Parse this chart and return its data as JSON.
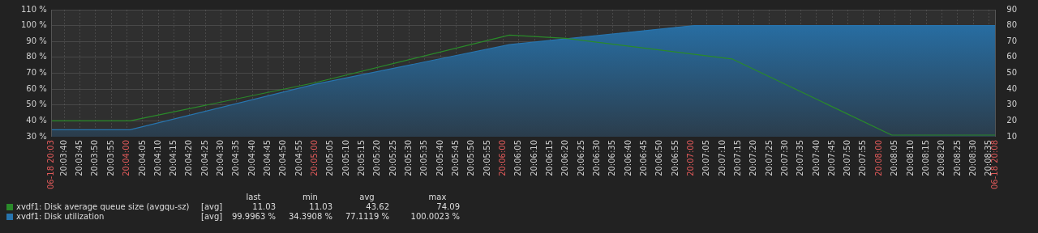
{
  "chart_data": {
    "type": "line",
    "legend": "bottom left",
    "grid": true,
    "xlim": [
      20.06,
      20.14361
    ],
    "xticks": [
      {
        "value": 20.06,
        "label": "06-18 20:03"
      },
      {
        "value": 20.06111,
        "label": "20:03:40"
      },
      {
        "value": 20.0625,
        "label": "20:03:45"
      },
      {
        "value": 20.06389,
        "label": "20:03:50"
      },
      {
        "value": 20.06528,
        "label": "20:03:55"
      },
      {
        "value": 20.06667,
        "label": "20:04:00"
      },
      {
        "value": 20.06806,
        "label": "20:04:05"
      },
      {
        "value": 20.06944,
        "label": "20:04:10"
      },
      {
        "value": 20.07083,
        "label": "20:04:15"
      },
      {
        "value": 20.07222,
        "label": "20:04:20"
      },
      {
        "value": 20.07361,
        "label": "20:04:25"
      },
      {
        "value": 20.075,
        "label": "20:04:30"
      },
      {
        "value": 20.07639,
        "label": "20:04:35"
      },
      {
        "value": 20.07778,
        "label": "20:04:40"
      },
      {
        "value": 20.07917,
        "label": "20:04:45"
      },
      {
        "value": 20.08056,
        "label": "20:04:50"
      },
      {
        "value": 20.08194,
        "label": "20:04:55"
      },
      {
        "value": 20.08333,
        "label": "20:05:00"
      },
      {
        "value": 20.08472,
        "label": "20:05:05"
      },
      {
        "value": 20.08611,
        "label": "20:05:10"
      },
      {
        "value": 20.0875,
        "label": "20:05:15"
      },
      {
        "value": 20.08889,
        "label": "20:05:20"
      },
      {
        "value": 20.09028,
        "label": "20:05:25"
      },
      {
        "value": 20.09167,
        "label": "20:05:30"
      },
      {
        "value": 20.09306,
        "label": "20:05:35"
      },
      {
        "value": 20.09444,
        "label": "20:05:40"
      },
      {
        "value": 20.09583,
        "label": "20:05:45"
      },
      {
        "value": 20.09722,
        "label": "20:05:50"
      },
      {
        "value": 20.09861,
        "label": "20:05:55"
      },
      {
        "value": 20.1,
        "label": "20:06:00"
      },
      {
        "value": 20.10139,
        "label": "20:06:05"
      },
      {
        "value": 20.10278,
        "label": "20:06:10"
      },
      {
        "value": 20.10417,
        "label": "20:06:15"
      },
      {
        "value": 20.10556,
        "label": "20:06:20"
      },
      {
        "value": 20.10694,
        "label": "20:06:25"
      },
      {
        "value": 20.10833,
        "label": "20:06:30"
      },
      {
        "value": 20.10972,
        "label": "20:06:35"
      },
      {
        "value": 20.11111,
        "label": "20:06:40"
      },
      {
        "value": 20.1125,
        "label": "20:06:45"
      },
      {
        "value": 20.11389,
        "label": "20:06:50"
      },
      {
        "value": 20.11528,
        "label": "20:06:55"
      },
      {
        "value": 20.11667,
        "label": "20:07:00"
      },
      {
        "value": 20.11806,
        "label": "20:07:05"
      },
      {
        "value": 20.11944,
        "label": "20:07:10"
      },
      {
        "value": 20.12083,
        "label": "20:07:15"
      },
      {
        "value": 20.12222,
        "label": "20:07:20"
      },
      {
        "value": 20.12361,
        "label": "20:07:25"
      },
      {
        "value": 20.125,
        "label": "20:07:30"
      },
      {
        "value": 20.12639,
        "label": "20:07:35"
      },
      {
        "value": 20.12778,
        "label": "20:07:40"
      },
      {
        "value": 20.12917,
        "label": "20:07:45"
      },
      {
        "value": 20.13056,
        "label": "20:07:50"
      },
      {
        "value": 20.13194,
        "label": "20:07:55"
      },
      {
        "value": 20.13333,
        "label": "20:08:00"
      },
      {
        "value": 20.13472,
        "label": "20:08:05"
      },
      {
        "value": 20.13611,
        "label": "20:08:10"
      },
      {
        "value": 20.1375,
        "label": "20:08:15"
      },
      {
        "value": 20.13889,
        "label": "20:08:20"
      },
      {
        "value": 20.14028,
        "label": "20:08:25"
      },
      {
        "value": 20.14167,
        "label": "20:08:30"
      },
      {
        "value": 20.14306,
        "label": "20:08:35"
      },
      {
        "value": 20.14361,
        "label": "06-18 20:08"
      }
    ],
    "ylim": [
      30,
      110
    ],
    "yticks": [
      {
        "value": 30,
        "label": "30 %"
      },
      {
        "value": 40,
        "label": "40 %"
      },
      {
        "value": 50,
        "label": "50 %"
      },
      {
        "value": 60,
        "label": "60 %"
      },
      {
        "value": 70,
        "label": "70 %"
      },
      {
        "value": 80,
        "label": "80 %"
      },
      {
        "value": 90,
        "label": "90 %"
      },
      {
        "value": 100,
        "label": "100 %"
      },
      {
        "value": 110,
        "label": "110 %"
      }
    ],
    "y2lim": [
      10,
      90
    ],
    "y2ticks": [
      10,
      20,
      30,
      40,
      50,
      60,
      70,
      80,
      90
    ],
    "series": [
      {
        "name": "xvdf1: Disk average queue size (avgqu-sz)",
        "axis": "y2",
        "color": "#2a8a2a",
        "x": [
          20.06,
          20.06694,
          20.08333,
          20.10056,
          20.10556,
          20.12028,
          20.13444,
          20.14361
        ],
        "values": [
          20,
          20,
          44,
          74,
          72,
          59,
          11,
          11
        ]
      },
      {
        "name": "xvdf1: Disk utilization",
        "type": "area",
        "color": "#2774ae",
        "x": [
          20.06,
          20.06694,
          20.08333,
          20.10056,
          20.11694,
          20.14361
        ],
        "values": [
          34.4,
          34.4,
          63,
          88,
          100,
          100
        ]
      }
    ],
    "annotations": [
      "last",
      "min",
      "avg",
      "max",
      "[avg]",
      "11.03",
      "11.03",
      "43.62",
      "74.09",
      "[avg]",
      "99.9963 %",
      "34.3908 %",
      "77.1119 %",
      "100.0023 %"
    ]
  }
}
